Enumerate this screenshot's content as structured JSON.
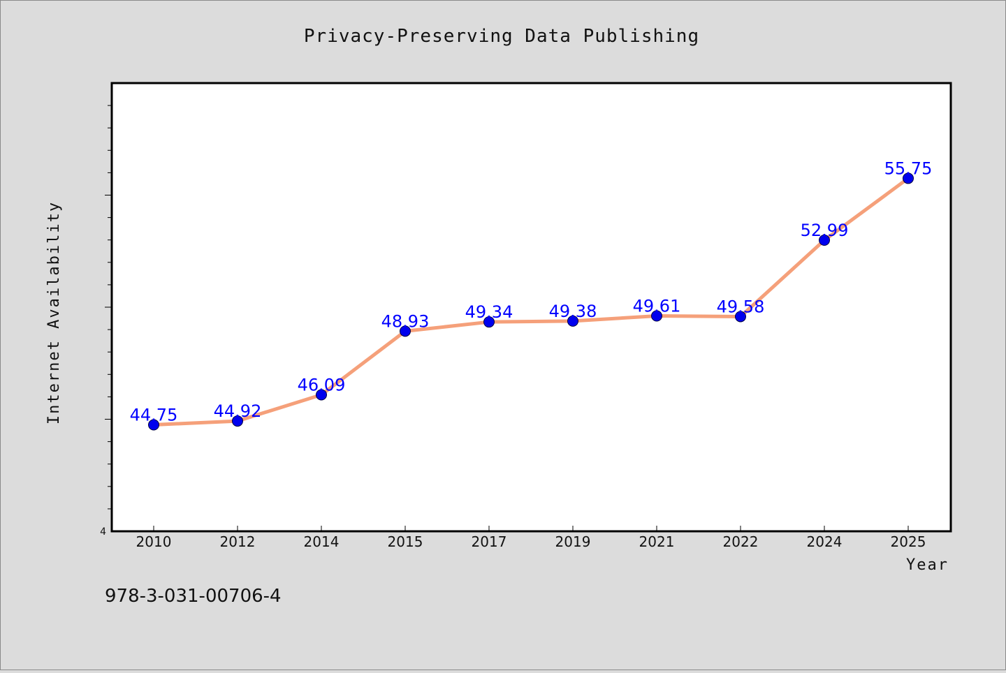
{
  "chart_data": {
    "type": "line",
    "title": "Privacy-Preserving Data Publishing",
    "xlabel": "Year",
    "ylabel": "Internet Availability",
    "categories": [
      "2010",
      "2012",
      "2014",
      "2015",
      "2017",
      "2019",
      "2021",
      "2022",
      "2024",
      "2025"
    ],
    "series": [
      {
        "values": [
          44.75,
          44.92,
          46.09,
          48.93,
          49.34,
          49.38,
          49.61,
          49.58,
          52.99,
          55.75
        ],
        "data_labels": [
          "44.75",
          "44.92",
          "46.09",
          "48.93",
          "49.34",
          "49.38",
          "49.61",
          "49.58",
          "52.99",
          "55.75"
        ]
      }
    ],
    "y_tick_labels": [
      "4"
    ],
    "ylim": [
      40,
      60
    ],
    "grid": false,
    "colors": {
      "line": "#f5a07a",
      "marker": "#0000ee",
      "data_label": "#0000ff",
      "plot_bg": "#ffffff",
      "page_bg": "#dcdcdc"
    }
  },
  "footer": {
    "isbn": "978-3-031-00706-4"
  }
}
